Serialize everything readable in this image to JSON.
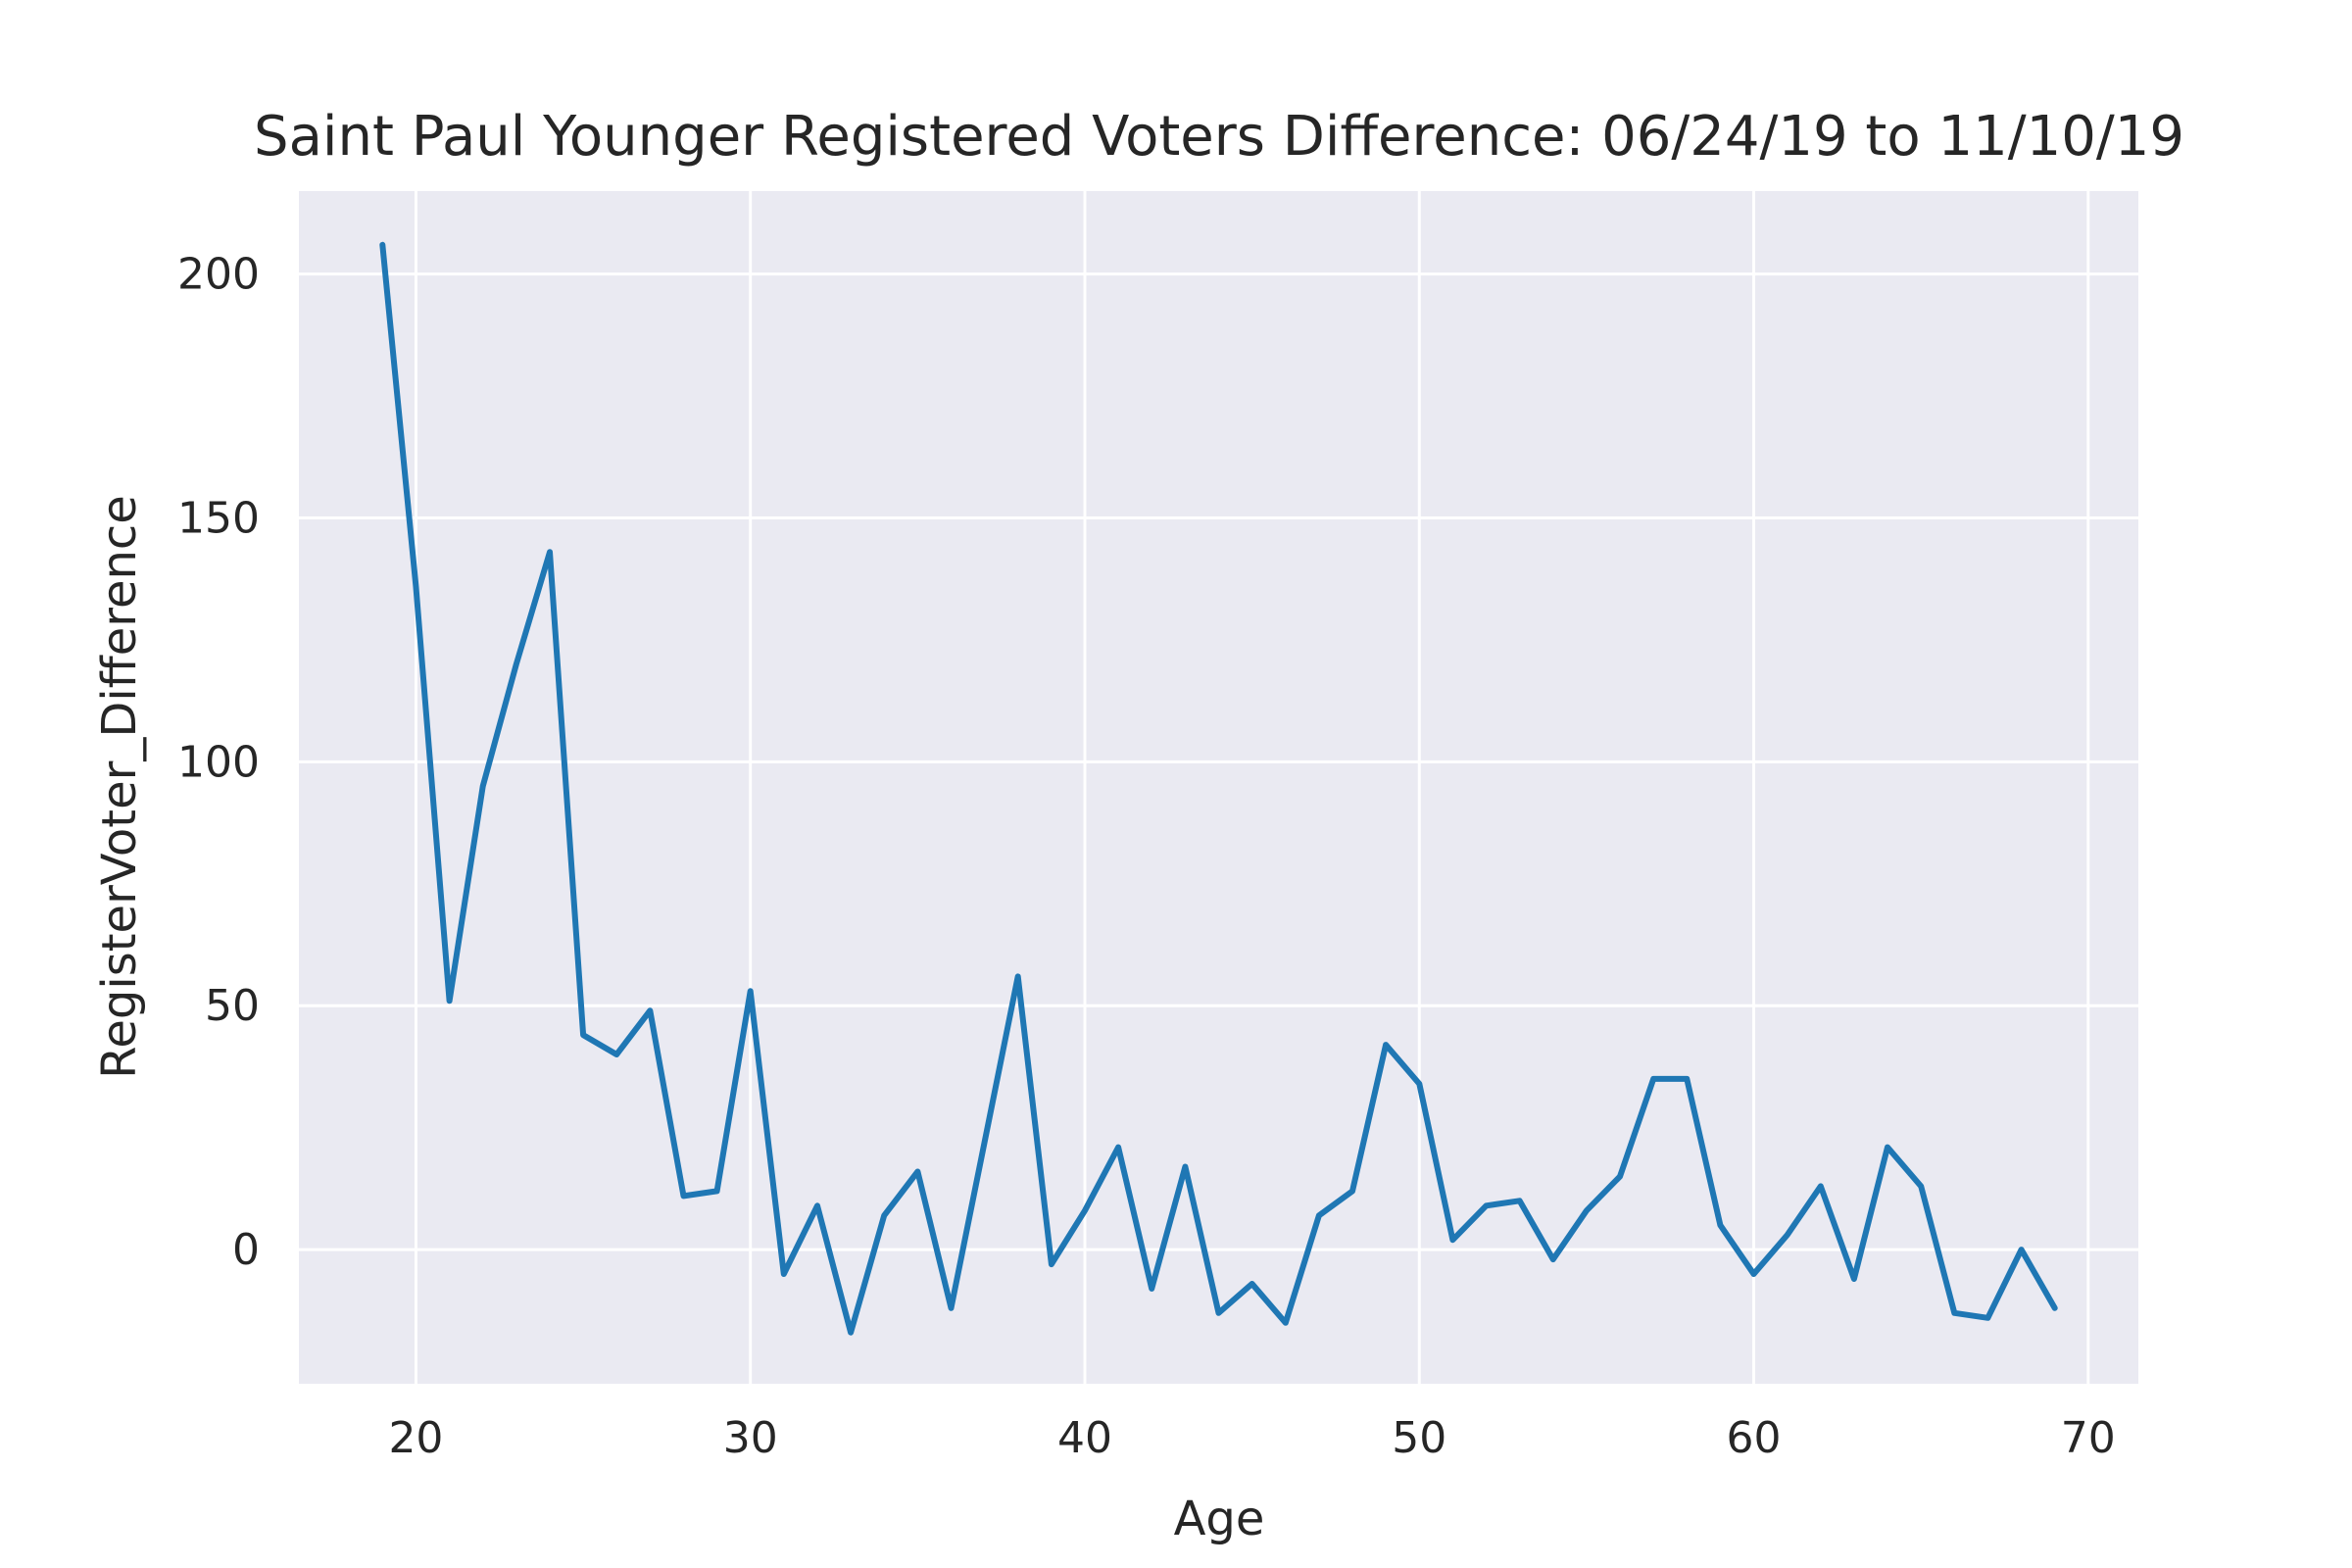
{
  "chart_data": {
    "type": "line",
    "title": "Saint Paul Younger Registered Voters Difference: 06/24/19 to 11/10/19",
    "xlabel": "Age",
    "ylabel": "RegisterVoter_Difference",
    "xlim": [
      16.5,
      71.5
    ],
    "ylim": [
      -27.5,
      217
    ],
    "xticks": [
      20,
      30,
      40,
      50,
      60,
      70
    ],
    "yticks": [
      0,
      50,
      100,
      150,
      200
    ],
    "grid": true,
    "background": "#eaeaf2",
    "line_color": "#1f77b4",
    "series": [
      {
        "x": [
          19,
          20,
          21,
          22,
          23,
          24,
          25,
          26,
          27,
          28,
          29,
          30,
          31,
          32,
          33,
          34,
          35,
          36,
          37,
          38,
          39,
          40,
          41,
          42,
          43,
          44,
          45,
          46,
          47,
          48,
          49,
          50,
          51,
          52,
          53,
          54,
          55,
          56,
          57,
          58,
          59,
          60,
          61,
          62,
          63,
          64,
          65,
          66,
          67,
          68,
          69
        ],
        "y": [
          206,
          136,
          51,
          95,
          120,
          143,
          44,
          40,
          49,
          11,
          12,
          53,
          -5,
          9,
          -17,
          7,
          16,
          -12,
          22,
          56,
          -3,
          8,
          21,
          -8,
          17,
          -13,
          -7,
          -15,
          7,
          12,
          42,
          34,
          2,
          9,
          10,
          -2,
          8,
          15,
          35,
          35,
          5,
          -5,
          3,
          13,
          -6,
          21,
          13,
          -13,
          -14,
          0,
          -12
        ]
      }
    ]
  }
}
